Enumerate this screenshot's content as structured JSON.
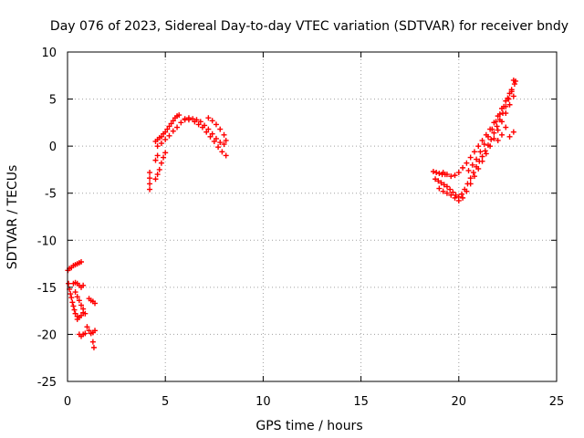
{
  "chart_data": {
    "type": "scatter",
    "title": "Day 076 of 2023, Sidereal Day-to-day VTEC variation (SDTVAR) for receiver bndy",
    "xlabel": "GPS time / hours",
    "ylabel": "SDTVAR / TECUs",
    "xlim": [
      0,
      25
    ],
    "ylim": [
      -25,
      10
    ],
    "xticks": [
      0,
      5,
      10,
      15,
      20,
      25
    ],
    "yticks": [
      -25,
      -20,
      -15,
      -10,
      -5,
      0,
      5,
      10
    ],
    "grid": true,
    "marker": "+",
    "marker_color": "#ff0000",
    "series": [
      {
        "name": "SDTVAR",
        "points": [
          [
            0.02,
            -13.2
          ],
          [
            0.1,
            -13.0
          ],
          [
            0.2,
            -12.9
          ],
          [
            0.3,
            -12.7
          ],
          [
            0.4,
            -12.6
          ],
          [
            0.5,
            -12.5
          ],
          [
            0.6,
            -12.4
          ],
          [
            0.7,
            -12.3
          ],
          [
            0.05,
            -14.6
          ],
          [
            0.1,
            -15.2
          ],
          [
            0.15,
            -15.7
          ],
          [
            0.2,
            -16.1
          ],
          [
            0.25,
            -16.6
          ],
          [
            0.3,
            -17.0
          ],
          [
            0.35,
            -17.4
          ],
          [
            0.4,
            -17.8
          ],
          [
            0.5,
            -18.1
          ],
          [
            0.3,
            -14.6
          ],
          [
            0.4,
            -14.5
          ],
          [
            0.5,
            -14.6
          ],
          [
            0.6,
            -14.8
          ],
          [
            0.7,
            -15.0
          ],
          [
            0.8,
            -14.8
          ],
          [
            0.4,
            -15.5
          ],
          [
            0.5,
            -16.0
          ],
          [
            0.6,
            -16.4
          ],
          [
            0.7,
            -16.9
          ],
          [
            0.8,
            -17.3
          ],
          [
            0.9,
            -17.8
          ],
          [
            0.5,
            -18.4
          ],
          [
            0.6,
            -18.2
          ],
          [
            0.7,
            -18.0
          ],
          [
            0.8,
            -17.7
          ],
          [
            0.6,
            -20.0
          ],
          [
            0.7,
            -20.2
          ],
          [
            0.8,
            -20.0
          ],
          [
            0.9,
            -19.9
          ],
          [
            1.1,
            -16.2
          ],
          [
            1.2,
            -16.4
          ],
          [
            1.3,
            -16.5
          ],
          [
            1.4,
            -16.7
          ],
          [
            1.0,
            -19.2
          ],
          [
            1.1,
            -19.6
          ],
          [
            1.2,
            -19.9
          ],
          [
            1.3,
            -19.8
          ],
          [
            1.4,
            -19.6
          ],
          [
            1.3,
            -20.8
          ],
          [
            1.35,
            -21.4
          ],
          [
            4.2,
            -2.8
          ],
          [
            4.2,
            -3.4
          ],
          [
            4.2,
            -4.0
          ],
          [
            4.2,
            -4.6
          ],
          [
            4.5,
            -3.5
          ],
          [
            4.6,
            -3.0
          ],
          [
            4.7,
            -2.5
          ],
          [
            4.8,
            -1.8
          ],
          [
            4.9,
            -1.2
          ],
          [
            5.0,
            -0.7
          ],
          [
            4.5,
            -1.5
          ],
          [
            4.6,
            -1.0
          ],
          [
            4.5,
            0.5
          ],
          [
            4.6,
            0.7
          ],
          [
            4.7,
            0.9
          ],
          [
            4.8,
            1.0
          ],
          [
            4.9,
            1.3
          ],
          [
            5.0,
            1.5
          ],
          [
            5.1,
            1.8
          ],
          [
            5.2,
            2.1
          ],
          [
            5.3,
            2.4
          ],
          [
            5.4,
            2.7
          ],
          [
            5.5,
            3.0
          ],
          [
            5.6,
            3.2
          ],
          [
            5.7,
            3.3
          ],
          [
            4.6,
            0.0
          ],
          [
            4.8,
            0.3
          ],
          [
            5.0,
            0.7
          ],
          [
            5.2,
            1.1
          ],
          [
            5.4,
            1.6
          ],
          [
            5.6,
            2.0
          ],
          [
            5.8,
            2.5
          ],
          [
            6.0,
            2.8
          ],
          [
            6.2,
            3.0
          ],
          [
            6.0,
            2.9
          ],
          [
            6.2,
            2.8
          ],
          [
            6.4,
            2.9
          ],
          [
            6.6,
            2.8
          ],
          [
            6.8,
            2.6
          ],
          [
            7.0,
            2.2
          ],
          [
            7.2,
            1.8
          ],
          [
            7.4,
            1.3
          ],
          [
            7.6,
            0.8
          ],
          [
            7.8,
            0.4
          ],
          [
            8.0,
            0.2
          ],
          [
            6.5,
            2.6
          ],
          [
            6.7,
            2.3
          ],
          [
            6.9,
            2.0
          ],
          [
            7.1,
            1.5
          ],
          [
            7.3,
            1.0
          ],
          [
            7.5,
            0.5
          ],
          [
            7.7,
            -0.1
          ],
          [
            7.9,
            -0.6
          ],
          [
            8.1,
            -1.0
          ],
          [
            7.2,
            3.0
          ],
          [
            7.4,
            2.7
          ],
          [
            7.6,
            2.3
          ],
          [
            7.8,
            1.8
          ],
          [
            8.0,
            1.2
          ],
          [
            8.1,
            0.6
          ],
          [
            18.7,
            -2.7
          ],
          [
            18.85,
            -2.8
          ],
          [
            19.0,
            -2.9
          ],
          [
            19.15,
            -3.0
          ],
          [
            19.3,
            -3.0
          ],
          [
            18.8,
            -3.5
          ],
          [
            18.95,
            -3.7
          ],
          [
            19.1,
            -3.9
          ],
          [
            19.25,
            -4.1
          ],
          [
            19.4,
            -4.3
          ],
          [
            19.55,
            -4.6
          ],
          [
            19.7,
            -4.9
          ],
          [
            19.85,
            -5.2
          ],
          [
            20.0,
            -5.4
          ],
          [
            20.15,
            -5.1
          ],
          [
            20.3,
            -4.6
          ],
          [
            20.45,
            -4.0
          ],
          [
            20.6,
            -3.4
          ],
          [
            20.75,
            -2.8
          ],
          [
            20.9,
            -2.2
          ],
          [
            21.05,
            -1.6
          ],
          [
            21.2,
            -1.1
          ],
          [
            21.35,
            -0.5
          ],
          [
            21.5,
            0.1
          ],
          [
            21.65,
            0.7
          ],
          [
            21.8,
            1.4
          ],
          [
            21.95,
            2.1
          ],
          [
            22.1,
            2.8
          ],
          [
            22.25,
            3.5
          ],
          [
            22.4,
            4.2
          ],
          [
            22.55,
            5.0
          ],
          [
            22.7,
            5.8
          ],
          [
            22.85,
            6.6
          ],
          [
            19.2,
            -2.8
          ],
          [
            19.4,
            -3.0
          ],
          [
            19.6,
            -3.2
          ],
          [
            19.8,
            -3.1
          ],
          [
            20.0,
            -2.8
          ],
          [
            20.2,
            -2.3
          ],
          [
            20.4,
            -1.8
          ],
          [
            20.6,
            -1.2
          ],
          [
            20.8,
            -0.6
          ],
          [
            21.0,
            0.0
          ],
          [
            21.2,
            0.6
          ],
          [
            21.4,
            1.2
          ],
          [
            21.6,
            1.8
          ],
          [
            21.8,
            2.5
          ],
          [
            22.0,
            3.2
          ],
          [
            22.2,
            4.0
          ],
          [
            22.4,
            4.8
          ],
          [
            22.6,
            5.6
          ],
          [
            22.8,
            7.0
          ],
          [
            19.0,
            -4.5
          ],
          [
            19.2,
            -4.8
          ],
          [
            19.4,
            -5.0
          ],
          [
            19.6,
            -5.2
          ],
          [
            19.8,
            -5.5
          ],
          [
            20.0,
            -5.8
          ],
          [
            20.2,
            -5.5
          ],
          [
            20.4,
            -4.8
          ],
          [
            20.6,
            -4.0
          ],
          [
            20.8,
            -3.2
          ],
          [
            21.0,
            -2.4
          ],
          [
            21.2,
            -1.6
          ],
          [
            21.4,
            -0.8
          ],
          [
            21.6,
            0.0
          ],
          [
            21.8,
            0.8
          ],
          [
            22.0,
            1.7
          ],
          [
            22.2,
            2.6
          ],
          [
            22.4,
            3.5
          ],
          [
            22.6,
            4.4
          ],
          [
            22.8,
            5.3
          ],
          [
            20.5,
            -2.6
          ],
          [
            20.7,
            -2.0
          ],
          [
            20.9,
            -1.4
          ],
          [
            21.1,
            -0.6
          ],
          [
            21.3,
            0.2
          ],
          [
            21.5,
            1.0
          ],
          [
            21.7,
            1.8
          ],
          [
            21.9,
            2.6
          ],
          [
            22.1,
            3.4
          ],
          [
            22.3,
            4.2
          ],
          [
            22.5,
            5.1
          ],
          [
            22.7,
            6.0
          ],
          [
            22.9,
            6.9
          ],
          [
            22.0,
            0.6
          ],
          [
            22.2,
            1.2
          ],
          [
            22.4,
            2.0
          ],
          [
            22.6,
            1.0
          ],
          [
            22.8,
            1.5
          ]
        ]
      }
    ]
  }
}
